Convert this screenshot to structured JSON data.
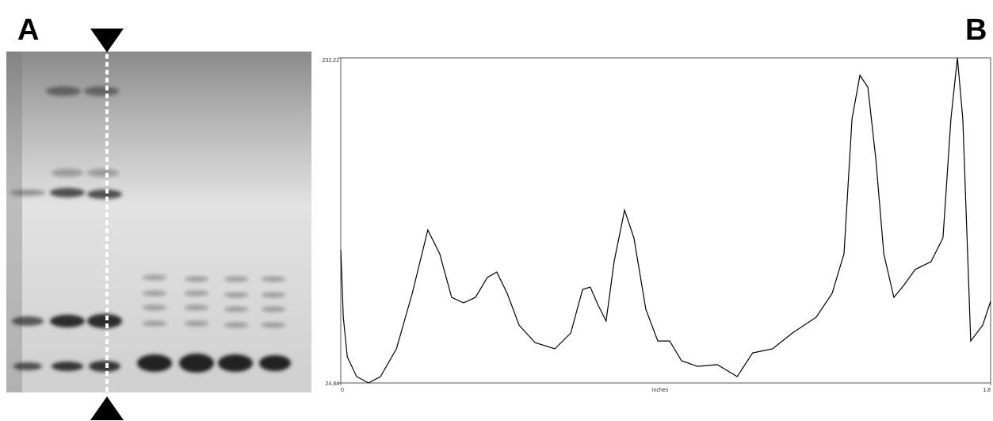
{
  "panels": {
    "left": "A",
    "right": "B"
  },
  "chart_data": {
    "type": "line",
    "x_label": "Inches",
    "x": [
      0,
      0.007,
      0.018,
      0.044,
      0.077,
      0.11,
      0.154,
      0.198,
      0.241,
      0.274,
      0.307,
      0.34,
      0.373,
      0.406,
      0.432,
      0.461,
      0.494,
      0.538,
      0.593,
      0.637,
      0.67,
      0.691,
      0.713,
      0.735,
      0.757,
      0.786,
      0.812,
      0.845,
      0.878,
      0.911,
      0.944,
      0.988,
      1.043,
      1.098,
      1.141,
      1.196,
      1.251,
      1.317,
      1.361,
      1.394,
      1.416,
      1.438,
      1.46,
      1.482,
      1.504,
      1.532,
      1.559,
      1.591,
      1.635,
      1.668,
      1.69,
      1.708,
      1.723,
      1.745,
      1.778,
      1.8
    ],
    "series": [
      {
        "color": "#000000",
        "values": [
          109.8,
          66.8,
          41.5,
          28.9,
          24.84,
          28.9,
          46.6,
          82.0,
          122.4,
          107.3,
          79.4,
          75.9,
          79.4,
          92.1,
          95.6,
          82.0,
          61.7,
          50.6,
          46.6,
          56.7,
          84.5,
          86.0,
          74.4,
          64.3,
          102.2,
          135.1,
          117.4,
          71.9,
          51.6,
          51.6,
          39.0,
          35.4,
          36.5,
          28.9,
          44.0,
          46.6,
          56.7,
          66.8,
          82.0,
          107.3,
          193.3,
          221.1,
          213.5,
          168.0,
          107.3,
          79.4,
          87.0,
          97.2,
          102.2,
          117.4,
          193.3,
          232.21,
          193.3,
          51.6,
          61.7,
          76.9
        ]
      }
    ],
    "xlim": [
      0,
      1.8
    ],
    "ylim": [
      24.84,
      232.21
    ],
    "xticks": [
      0,
      1.8
    ],
    "yticks": [
      24.84,
      232.21
    ]
  }
}
